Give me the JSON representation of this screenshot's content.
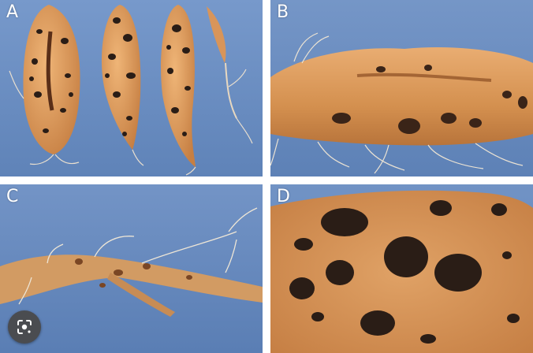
{
  "panels": [
    {
      "label": "A",
      "depicts": "sweet-potato-roots-with-black-spots"
    },
    {
      "label": "B",
      "depicts": "sweet-potato-root-with-lesions"
    },
    {
      "label": "C",
      "depicts": "thin-root-with-lesions"
    },
    {
      "label": "D",
      "depicts": "root-skin-closeup-with-black-scurf-spots"
    }
  ],
  "overlay": {
    "lens_icon": "lens-camera-icon"
  },
  "colors": {
    "background": "#6e91c4",
    "root": "#d99a5e",
    "spot": "#2a1d16",
    "label": "#ffffff"
  }
}
